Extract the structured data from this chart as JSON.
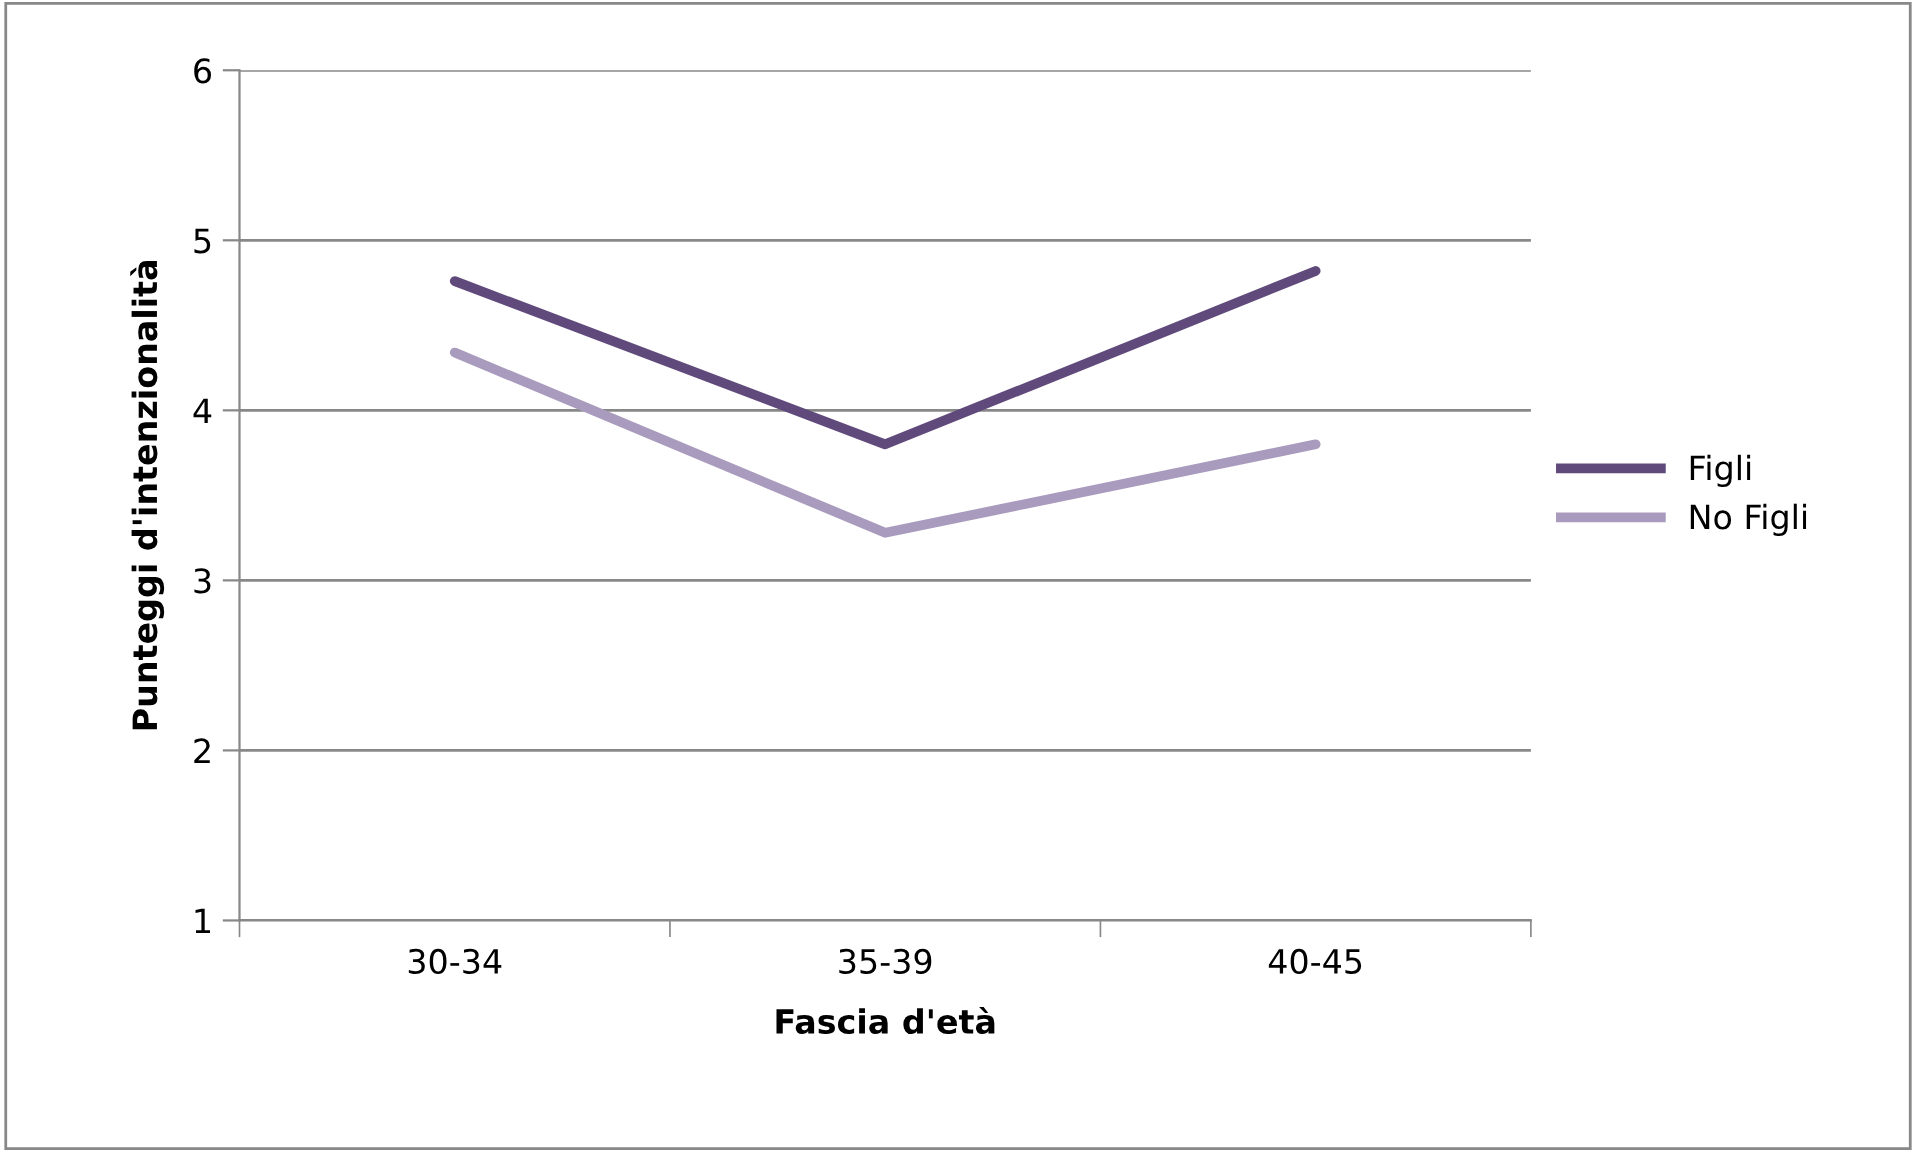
{
  "chart_data": {
    "type": "line",
    "xlabel": "Fascia d'età",
    "ylabel": "Punteggi d'intenzionalità",
    "categories": [
      "30-34",
      "35-39",
      "40-45"
    ],
    "series": [
      {
        "name": "Figli",
        "color": "#604a7b",
        "values": [
          4.76,
          3.8,
          4.82
        ]
      },
      {
        "name": "No Figli",
        "color": "#a99bbd",
        "values": [
          4.34,
          3.28,
          3.8
        ]
      }
    ],
    "ylim": [
      1,
      6
    ],
    "yticks": [
      1,
      2,
      3,
      4,
      5,
      6
    ],
    "grid": "y",
    "legend": "right",
    "marker": "none",
    "line_style": "solid"
  }
}
